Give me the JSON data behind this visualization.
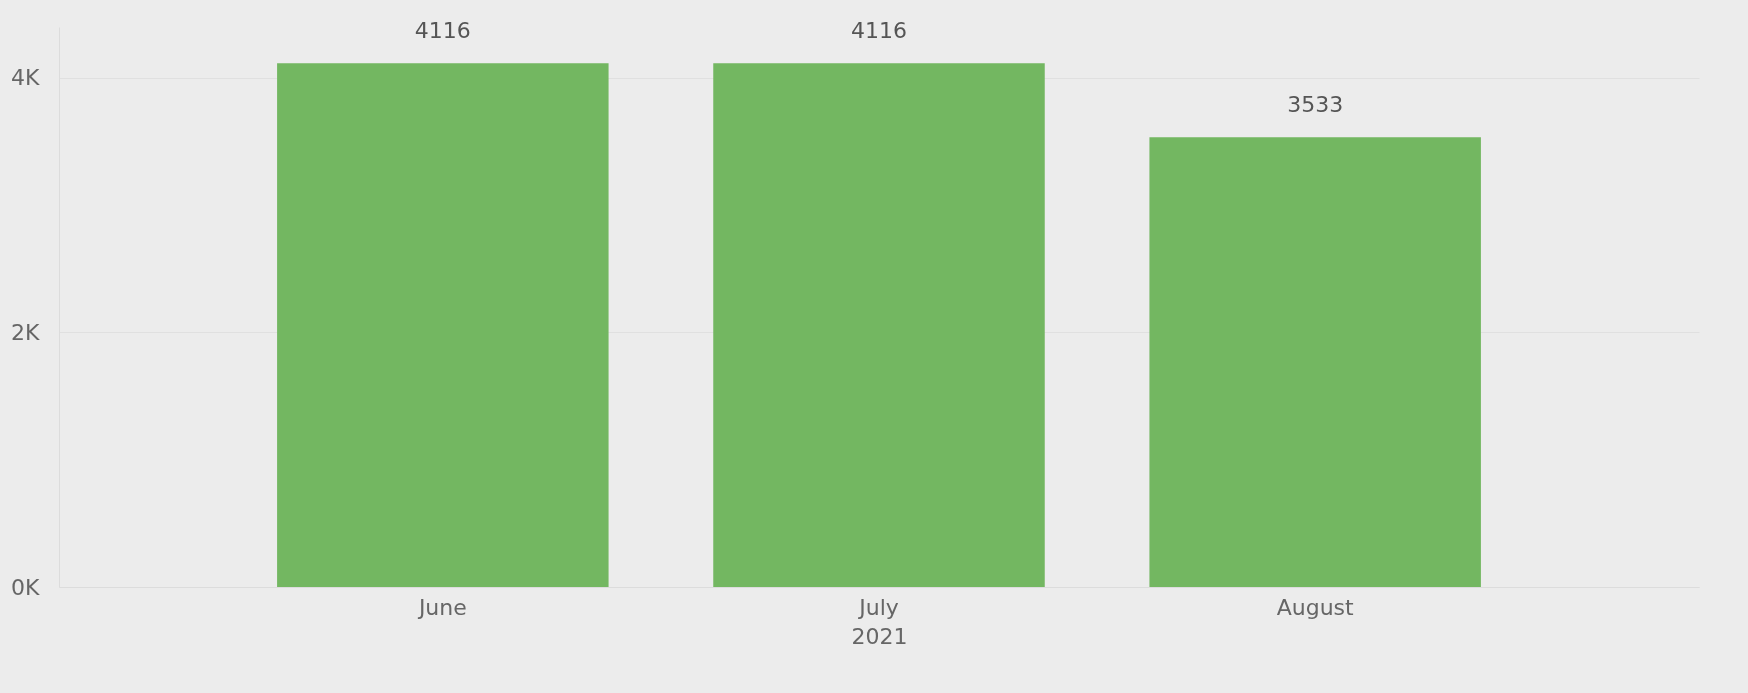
{
  "chart_data": {
    "type": "bar",
    "xlabel": "2021",
    "categories": [
      "June",
      "July",
      "August"
    ],
    "values": [
      4116,
      4116,
      3533
    ],
    "color": "#73b761",
    "ylim": [
      0,
      4400
    ],
    "yticks": [
      {
        "value": 0,
        "label": "0K"
      },
      {
        "value": 2000,
        "label": "2K"
      },
      {
        "value": 4000,
        "label": "4K"
      }
    ],
    "grid": "y",
    "data_labels": true
  }
}
